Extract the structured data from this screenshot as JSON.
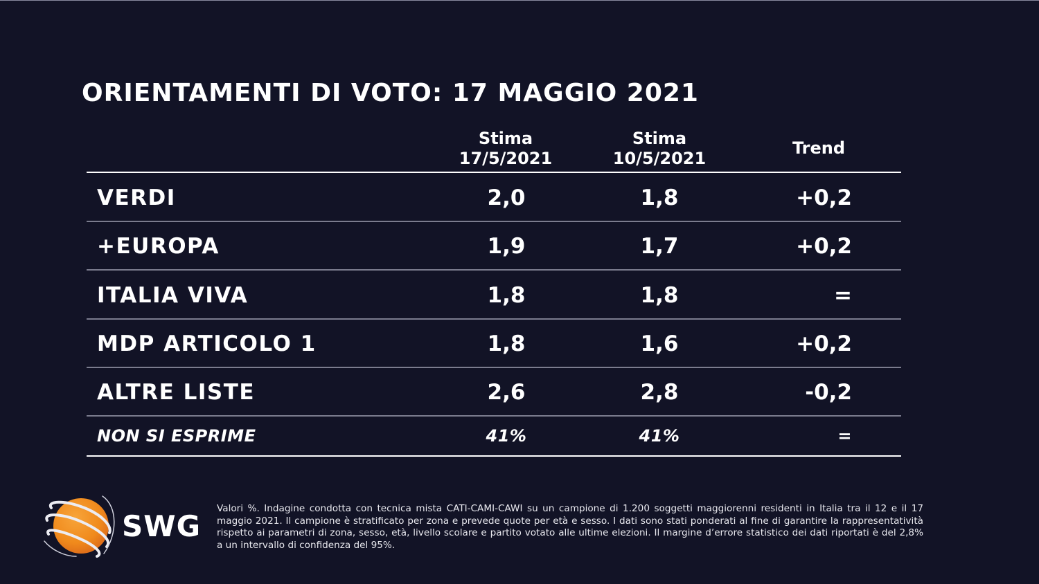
{
  "title": "ORIENTAMENTI DI VOTO: 17 MAGGIO 2021",
  "table": {
    "headers": [
      {
        "line1": "Stima",
        "line2": "17/5/2021"
      },
      {
        "line1": "Stima",
        "line2": "10/5/2021"
      },
      {
        "line1": "Trend",
        "line2": ""
      }
    ],
    "rows": [
      {
        "party": "VERDI",
        "current": "2,0",
        "previous": "1,8",
        "trend": "+0,2"
      },
      {
        "party": "+EUROPA",
        "current": "1,9",
        "previous": "1,7",
        "trend": "+0,2"
      },
      {
        "party": "ITALIA VIVA",
        "current": "1,8",
        "previous": "1,8",
        "trend": "="
      },
      {
        "party": "MDP ARTICOLO 1",
        "current": "1,8",
        "previous": "1,6",
        "trend": "+0,2"
      },
      {
        "party": "ALTRE LISTE",
        "current": "2,6",
        "previous": "2,8",
        "trend": "-0,2"
      },
      {
        "party": "NON SI ESPRIME",
        "current": "41%",
        "previous": "41%",
        "trend": "="
      }
    ]
  },
  "footnote": "Valori %. Indagine condotta con tecnica mista CATI-CAMI-CAWI su un campione di 1.200 soggetti maggiorenni residenti in Italia tra il 12 e il 17 maggio 2021. Il campione è stratificato per zona e prevede quote per età e sesso. I dati sono stati ponderati al fine di garantire la rappresentatività rispetto ai parametri di zona, sesso, età, livello scolare e partito votato alle ultime elezioni. Il margine d’errore statistico dei dati riportati è del 2,8% a un intervallo di confidenza del 95%.",
  "logo": {
    "text": "SWG",
    "icon": "globe-orbit-icon"
  },
  "colors": {
    "background": "#121326",
    "text": "#ffffff",
    "divider": "#7b7c8e",
    "logo_orange": "#f08a1c"
  }
}
